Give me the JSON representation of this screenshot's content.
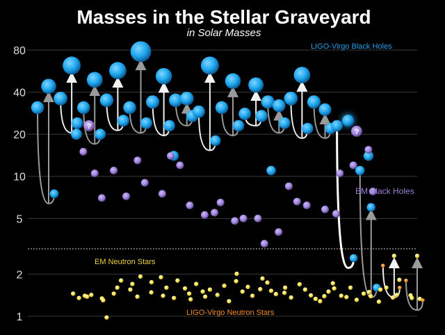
{
  "chart_data": {
    "type": "scatter",
    "title": "Masses in the Stellar Graveyard",
    "subtitle": "in Solar Masses",
    "xlabel": "",
    "ylabel": "",
    "y_scale": "log",
    "ylim": [
      0.95,
      95
    ],
    "y_ticks": [
      1,
      2,
      5,
      10,
      20,
      40,
      80
    ],
    "y_tick_labels": [
      "1",
      "2",
      "5",
      "10",
      "20",
      "40",
      "80"
    ],
    "grid": true,
    "colors": {
      "ligo_bh": "#1ea7ee",
      "em_bh": "#9b7fd6",
      "em_ns": "#f5e04a",
      "ligo_ns": "#f08c2a",
      "bh_label": "#2a9fe6",
      "ns_label": "#f0d040",
      "ligo_ns_label": "#f08c2a"
    },
    "labels": {
      "ligo_bh": "LIGO-Virgo Black Holes",
      "em_bh": "EM Black Holes",
      "em_ns": "EM Neutron Stars",
      "ligo_ns": "LIGO-Virgo Neutron Stars"
    },
    "unknown_marker": "?",
    "mergers": [
      {
        "a": 31,
        "b": 7.5,
        "f": 44,
        "big": false
      },
      {
        "a": 36,
        "b": 24,
        "f": 62,
        "big": false
      },
      {
        "a": 31,
        "b": 20,
        "f": 49,
        "big": false
      },
      {
        "a": 35,
        "b": 25,
        "f": 57,
        "big": false
      },
      {
        "a": 31,
        "b": 24,
        "f": 78,
        "big": false
      },
      {
        "a": 34,
        "b": 23,
        "f": 52,
        "big": false
      },
      {
        "a": 35,
        "b": 27,
        "f": 36,
        "big": false
      },
      {
        "a": 29,
        "b": 18,
        "f": 62,
        "big": false
      },
      {
        "a": 31,
        "b": 23,
        "f": 48,
        "big": false
      },
      {
        "a": 28,
        "b": 27,
        "f": 45,
        "big": false
      },
      {
        "a": 34,
        "b": 24,
        "f": 32,
        "big": false
      },
      {
        "a": 36,
        "b": 22,
        "f": 53,
        "big": false
      },
      {
        "a": 34,
        "b": 22,
        "f": 30,
        "big": false
      },
      {
        "a": 23,
        "b": 2.6,
        "f": 25,
        "big": true
      },
      {
        "a": 11,
        "b": 1.6,
        "f": 6,
        "big": false
      },
      {
        "a": 2.3,
        "b": 1.6,
        "f": 2.7,
        "big": false
      },
      {
        "a": 1.8,
        "b": 1.3,
        "f": 2.7,
        "big": false
      }
    ],
    "ligo_bh_extra": [
      20,
      14,
      11,
      14
    ],
    "em_bh": [
      15,
      10.5,
      7,
      11,
      7.2,
      13,
      9,
      7.5,
      14,
      12,
      6.2,
      5.3,
      5.5,
      6.5,
      4.8,
      5,
      5,
      3.3,
      4,
      8.5,
      6.6,
      6.2,
      5.8,
      5.4,
      10.5,
      12,
      15.5,
      7.8
    ],
    "em_ns": [
      1.45,
      1.35,
      1.4,
      1.38,
      1.42,
      1.34,
      1.3,
      0.98,
      1.45,
      1.6,
      1.8,
      1.55,
      1.7,
      1.38,
      1.92,
      1.48,
      1.75,
      1.9,
      1.4,
      1.6,
      1.35,
      1.8,
      1.58,
      1.45,
      1.32,
      1.7,
      1.5,
      1.38,
      1.55,
      1.42,
      1.65,
      1.28,
      1.78,
      2.01,
      1.5,
      1.62,
      1.4,
      1.56,
      1.86,
      1.74,
      1.52,
      1.44,
      1.47,
      1.6,
      1.36,
      1.69,
      1.55,
      1.41,
      1.33,
      1.28,
      1.39,
      1.5,
      1.72,
      1.58,
      1.4,
      1.37,
      1.6,
      1.31,
      1.45,
      1.49,
      1.39,
      1.55,
      1.27,
      1.6,
      1.36,
      1.42,
      1.82,
      1.41,
      1.35,
      1.33
    ],
    "unknown_masses": [
      23,
      21
    ]
  }
}
